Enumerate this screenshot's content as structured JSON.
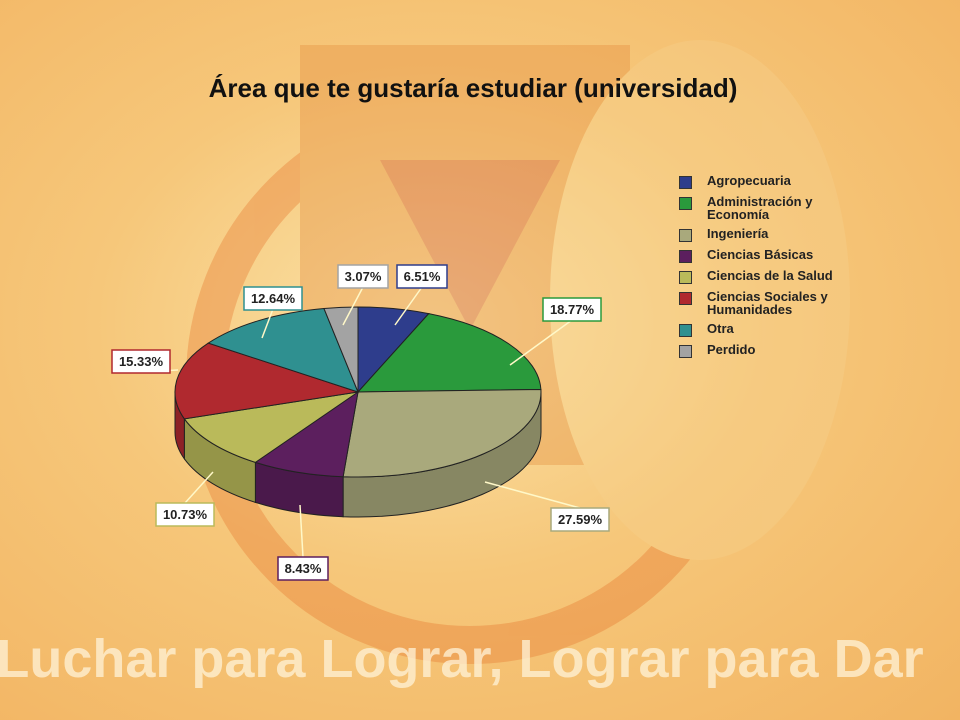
{
  "chart_data": {
    "type": "pie3d",
    "title": "Área que te gustaría estudiar (universidad)",
    "categories": [
      "Agropecuaria",
      "Administración y Economía",
      "Ingeniería",
      "Ciencias Básicas",
      "Ciencias de la Salud",
      "Ciencias Sociales y Humanidades",
      "Otra",
      "Perdido"
    ],
    "values": [
      6.51,
      18.77,
      27.59,
      8.43,
      10.73,
      15.33,
      12.64,
      3.07
    ],
    "value_labels": [
      "6.51%",
      "18.77%",
      "27.59%",
      "8.43%",
      "10.73%",
      "15.33%",
      "12.64%",
      "3.07%"
    ],
    "colors": [
      "#2e3d8c",
      "#2a9a3c",
      "#a9a97c",
      "#5c1f5e",
      "#baba5a",
      "#b0292f",
      "#2f9090",
      "#a3a3a3"
    ],
    "legend": "right"
  },
  "watermark": "Luchar para Lograr, Lograr para Dar"
}
